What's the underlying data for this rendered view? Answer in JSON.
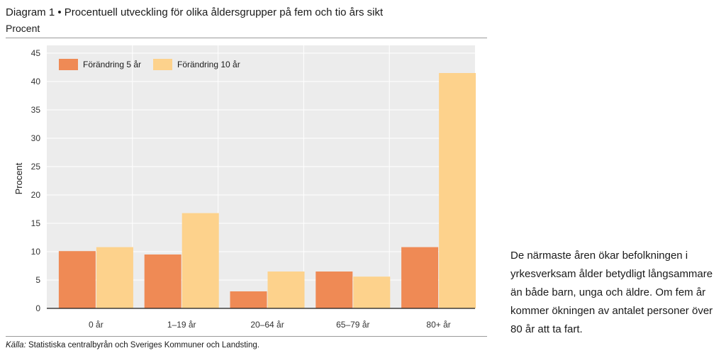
{
  "header": {
    "title": "Diagram 1 • Procentuell utveckling för olika åldersgrupper på fem och tio års sikt",
    "subtitle": "Procent"
  },
  "source": {
    "label": "Källa:",
    "text": " Statistiska centralbyrån och Sveriges Kommuner och Landsting."
  },
  "sidebar": {
    "text": "De närmaste åren ökar befolkningen i yrkesverksam ålder betydligt långsammare än både barn, unga och äldre. Om fem år kommer ökningen av antalet personer över 80 år att ta fart."
  },
  "chart_data": {
    "type": "bar",
    "categories": [
      "0 år",
      "1–19 år",
      "20–64 år",
      "65–79 år",
      "80+ år"
    ],
    "series": [
      {
        "name": "Förändring 5 år",
        "values": [
          10.1,
          9.5,
          3.0,
          6.5,
          10.8
        ],
        "color": "#ef8a55"
      },
      {
        "name": "Förändring 10 år",
        "values": [
          10.8,
          16.8,
          6.5,
          5.6,
          41.5
        ],
        "color": "#fdd28c"
      }
    ],
    "ylabel": "Procent",
    "ylim": [
      0,
      45
    ],
    "yticks": [
      0,
      5,
      10,
      15,
      20,
      25,
      30,
      35,
      40,
      45
    ],
    "grid": true,
    "legend": "top-left",
    "background": "#ececec"
  }
}
